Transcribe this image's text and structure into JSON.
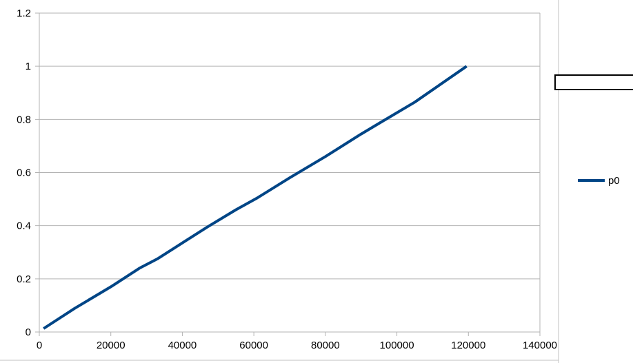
{
  "chart_data": {
    "type": "line",
    "title": "",
    "xlabel": "",
    "ylabel": "",
    "xlim": [
      0,
      140000
    ],
    "ylim": [
      0,
      1.2
    ],
    "xticks": [
      "0",
      "20000",
      "40000",
      "60000",
      "80000",
      "100000",
      "120000",
      "140000"
    ],
    "yticks": [
      "0",
      "0.2",
      "0.4",
      "0.6",
      "0.8",
      "1",
      "1.2"
    ],
    "grid": "horizontal",
    "legend": "right",
    "series": [
      {
        "name": "p0",
        "color": "#004586",
        "x": [
          1200,
          10000,
          20000,
          28000,
          33000,
          40000,
          47000,
          55000,
          61000,
          70000,
          80000,
          90000,
          95000,
          105000,
          119500
        ],
        "y": [
          0.013,
          0.09,
          0.17,
          0.24,
          0.275,
          0.335,
          0.395,
          0.46,
          0.505,
          0.58,
          0.66,
          0.745,
          0.785,
          0.865,
          1.0
        ]
      }
    ]
  }
}
